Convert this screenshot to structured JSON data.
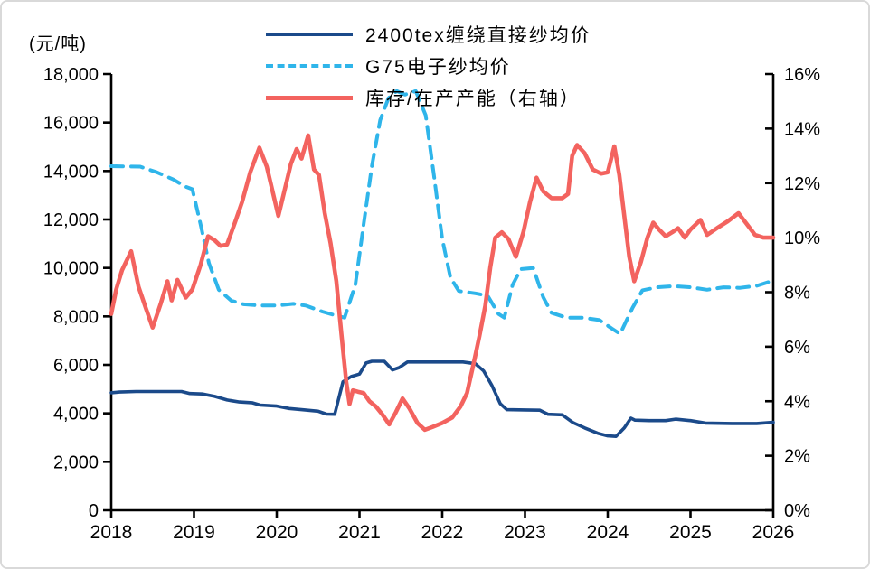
{
  "chart_data": {
    "type": "line",
    "title": "",
    "grid": false,
    "legend_position": "top-center",
    "colors": {
      "navy": "#1b4a8a",
      "sky": "#2fb5ea",
      "red": "#f3635f",
      "axis": "#000000",
      "frame_border": "#d9d9d9"
    },
    "x_axis": {
      "range": [
        2018,
        2026
      ],
      "ticks": [
        {
          "value": 2018,
          "label": "2018"
        },
        {
          "value": 2019,
          "label": "2019"
        },
        {
          "value": 2020,
          "label": "2020"
        },
        {
          "value": 2021,
          "label": "2021"
        },
        {
          "value": 2022,
          "label": "2022"
        },
        {
          "value": 2023,
          "label": "2023"
        },
        {
          "value": 2024,
          "label": "2024"
        },
        {
          "value": 2025,
          "label": "2025"
        },
        {
          "value": 2026,
          "label": "2026"
        }
      ]
    },
    "y_left": {
      "label": "(元/吨)",
      "range": [
        0,
        18000
      ],
      "ticks": [
        {
          "value": 0,
          "label": "0"
        },
        {
          "value": 2000,
          "label": "2,000"
        },
        {
          "value": 4000,
          "label": "4,000"
        },
        {
          "value": 6000,
          "label": "6,000"
        },
        {
          "value": 8000,
          "label": "8,000"
        },
        {
          "value": 10000,
          "label": "10,000"
        },
        {
          "value": 12000,
          "label": "12,000"
        },
        {
          "value": 14000,
          "label": "14,000"
        },
        {
          "value": 16000,
          "label": "16,000"
        },
        {
          "value": 18000,
          "label": "18,000"
        }
      ]
    },
    "y_right": {
      "label": "",
      "range": [
        0,
        16
      ],
      "ticks": [
        {
          "value": 0,
          "label": "0%"
        },
        {
          "value": 2,
          "label": "2%"
        },
        {
          "value": 4,
          "label": "4%"
        },
        {
          "value": 6,
          "label": "6%"
        },
        {
          "value": 8,
          "label": "8%"
        },
        {
          "value": 10,
          "label": "10%"
        },
        {
          "value": 12,
          "label": "12%"
        },
        {
          "value": 14,
          "label": "14%"
        },
        {
          "value": 16,
          "label": "16%"
        }
      ]
    },
    "series": [
      {
        "name": "2400tex缠绕直接纱均价",
        "axis": "left",
        "color": "#1b4a8a",
        "style": "solid",
        "width": 3.6,
        "points": [
          [
            2018.0,
            4850
          ],
          [
            2018.1,
            4880
          ],
          [
            2018.3,
            4900
          ],
          [
            2018.6,
            4900
          ],
          [
            2018.85,
            4900
          ],
          [
            2018.95,
            4820
          ],
          [
            2019.1,
            4800
          ],
          [
            2019.25,
            4700
          ],
          [
            2019.4,
            4550
          ],
          [
            2019.55,
            4470
          ],
          [
            2019.7,
            4440
          ],
          [
            2019.8,
            4340
          ],
          [
            2020.0,
            4300
          ],
          [
            2020.15,
            4200
          ],
          [
            2020.3,
            4150
          ],
          [
            2020.5,
            4090
          ],
          [
            2020.6,
            3970
          ],
          [
            2020.7,
            3960
          ],
          [
            2020.8,
            5300
          ],
          [
            2020.9,
            5520
          ],
          [
            2021.0,
            5620
          ],
          [
            2021.08,
            6080
          ],
          [
            2021.15,
            6150
          ],
          [
            2021.3,
            6150
          ],
          [
            2021.4,
            5790
          ],
          [
            2021.48,
            5890
          ],
          [
            2021.58,
            6120
          ],
          [
            2021.75,
            6120
          ],
          [
            2022.0,
            6120
          ],
          [
            2022.25,
            6120
          ],
          [
            2022.4,
            6050
          ],
          [
            2022.5,
            5750
          ],
          [
            2022.6,
            5150
          ],
          [
            2022.7,
            4400
          ],
          [
            2022.78,
            4150
          ],
          [
            2023.0,
            4140
          ],
          [
            2023.18,
            4130
          ],
          [
            2023.28,
            3960
          ],
          [
            2023.45,
            3940
          ],
          [
            2023.58,
            3620
          ],
          [
            2023.72,
            3400
          ],
          [
            2023.88,
            3180
          ],
          [
            2024.0,
            3070
          ],
          [
            2024.1,
            3050
          ],
          [
            2024.2,
            3400
          ],
          [
            2024.28,
            3800
          ],
          [
            2024.33,
            3720
          ],
          [
            2024.5,
            3700
          ],
          [
            2024.7,
            3700
          ],
          [
            2024.82,
            3760
          ],
          [
            2025.0,
            3700
          ],
          [
            2025.18,
            3600
          ],
          [
            2025.5,
            3580
          ],
          [
            2025.8,
            3580
          ],
          [
            2026.0,
            3630
          ]
        ]
      },
      {
        "name": "G75电子纱均价",
        "axis": "left",
        "color": "#2fb5ea",
        "style": "dashed",
        "width": 4,
        "points": [
          [
            2018.0,
            14200
          ],
          [
            2018.35,
            14180
          ],
          [
            2018.55,
            13950
          ],
          [
            2018.75,
            13650
          ],
          [
            2018.9,
            13350
          ],
          [
            2018.98,
            13250
          ],
          [
            2019.08,
            11800
          ],
          [
            2019.18,
            10200
          ],
          [
            2019.3,
            9100
          ],
          [
            2019.45,
            8650
          ],
          [
            2019.6,
            8500
          ],
          [
            2019.8,
            8450
          ],
          [
            2020.0,
            8450
          ],
          [
            2020.2,
            8520
          ],
          [
            2020.35,
            8450
          ],
          [
            2020.55,
            8200
          ],
          [
            2020.7,
            8050
          ],
          [
            2020.82,
            7950
          ],
          [
            2020.95,
            9300
          ],
          [
            2021.05,
            11800
          ],
          [
            2021.15,
            14200
          ],
          [
            2021.25,
            16100
          ],
          [
            2021.35,
            17000
          ],
          [
            2021.45,
            17300
          ],
          [
            2021.55,
            17150
          ],
          [
            2021.68,
            17300
          ],
          [
            2021.8,
            16300
          ],
          [
            2021.9,
            13800
          ],
          [
            2022.0,
            11200
          ],
          [
            2022.1,
            9600
          ],
          [
            2022.2,
            9050
          ],
          [
            2022.4,
            8950
          ],
          [
            2022.55,
            8850
          ],
          [
            2022.68,
            8100
          ],
          [
            2022.75,
            7950
          ],
          [
            2022.85,
            9300
          ],
          [
            2022.95,
            9950
          ],
          [
            2023.1,
            10000
          ],
          [
            2023.22,
            8800
          ],
          [
            2023.32,
            8150
          ],
          [
            2023.5,
            7950
          ],
          [
            2023.7,
            7950
          ],
          [
            2023.9,
            7850
          ],
          [
            2024.05,
            7500
          ],
          [
            2024.15,
            7280
          ],
          [
            2024.3,
            8350
          ],
          [
            2024.42,
            9080
          ],
          [
            2024.6,
            9200
          ],
          [
            2024.8,
            9250
          ],
          [
            2025.0,
            9200
          ],
          [
            2025.2,
            9100
          ],
          [
            2025.4,
            9200
          ],
          [
            2025.6,
            9180
          ],
          [
            2025.8,
            9260
          ],
          [
            2026.0,
            9480
          ]
        ]
      },
      {
        "name": "库存/在产产能（右轴）",
        "axis": "right",
        "color": "#f3635f",
        "style": "solid",
        "width": 4.6,
        "points": [
          [
            2018.0,
            7.2
          ],
          [
            2018.06,
            8.1
          ],
          [
            2018.13,
            8.8
          ],
          [
            2018.24,
            9.5
          ],
          [
            2018.33,
            8.2
          ],
          [
            2018.42,
            7.4
          ],
          [
            2018.5,
            6.7
          ],
          [
            2018.6,
            7.6
          ],
          [
            2018.68,
            8.4
          ],
          [
            2018.73,
            7.7
          ],
          [
            2018.8,
            8.45
          ],
          [
            2018.9,
            7.8
          ],
          [
            2018.98,
            8.1
          ],
          [
            2019.08,
            9.0
          ],
          [
            2019.17,
            10.05
          ],
          [
            2019.25,
            9.9
          ],
          [
            2019.32,
            9.7
          ],
          [
            2019.4,
            9.75
          ],
          [
            2019.5,
            10.6
          ],
          [
            2019.58,
            11.3
          ],
          [
            2019.68,
            12.4
          ],
          [
            2019.79,
            13.3
          ],
          [
            2019.88,
            12.6
          ],
          [
            2020.02,
            10.8
          ],
          [
            2020.1,
            11.8
          ],
          [
            2020.17,
            12.7
          ],
          [
            2020.24,
            13.25
          ],
          [
            2020.3,
            12.9
          ],
          [
            2020.38,
            13.75
          ],
          [
            2020.45,
            12.5
          ],
          [
            2020.51,
            12.3
          ],
          [
            2020.58,
            10.9
          ],
          [
            2020.65,
            9.8
          ],
          [
            2020.72,
            8.4
          ],
          [
            2020.78,
            6.5
          ],
          [
            2020.84,
            4.7
          ],
          [
            2020.88,
            3.9
          ],
          [
            2020.92,
            4.4
          ],
          [
            2020.98,
            4.35
          ],
          [
            2021.05,
            4.3
          ],
          [
            2021.12,
            4.0
          ],
          [
            2021.2,
            3.8
          ],
          [
            2021.28,
            3.5
          ],
          [
            2021.36,
            3.15
          ],
          [
            2021.44,
            3.6
          ],
          [
            2021.52,
            4.1
          ],
          [
            2021.6,
            3.75
          ],
          [
            2021.7,
            3.2
          ],
          [
            2021.79,
            2.95
          ],
          [
            2021.88,
            3.05
          ],
          [
            2022.0,
            3.2
          ],
          [
            2022.12,
            3.4
          ],
          [
            2022.22,
            3.8
          ],
          [
            2022.3,
            4.3
          ],
          [
            2022.38,
            5.4
          ],
          [
            2022.45,
            6.4
          ],
          [
            2022.52,
            7.5
          ],
          [
            2022.58,
            8.9
          ],
          [
            2022.64,
            10.0
          ],
          [
            2022.72,
            10.2
          ],
          [
            2022.8,
            9.95
          ],
          [
            2022.89,
            9.3
          ],
          [
            2022.98,
            10.2
          ],
          [
            2023.06,
            11.3
          ],
          [
            2023.14,
            12.2
          ],
          [
            2023.22,
            11.7
          ],
          [
            2023.32,
            11.45
          ],
          [
            2023.45,
            11.45
          ],
          [
            2023.52,
            11.6
          ],
          [
            2023.57,
            13.0
          ],
          [
            2023.63,
            13.4
          ],
          [
            2023.72,
            13.1
          ],
          [
            2023.82,
            12.5
          ],
          [
            2023.92,
            12.35
          ],
          [
            2024.0,
            12.4
          ],
          [
            2024.08,
            13.35
          ],
          [
            2024.14,
            12.3
          ],
          [
            2024.2,
            10.8
          ],
          [
            2024.26,
            9.3
          ],
          [
            2024.32,
            8.4
          ],
          [
            2024.4,
            9.1
          ],
          [
            2024.48,
            10.0
          ],
          [
            2024.55,
            10.55
          ],
          [
            2024.62,
            10.3
          ],
          [
            2024.7,
            10.05
          ],
          [
            2024.78,
            10.2
          ],
          [
            2024.85,
            10.35
          ],
          [
            2024.93,
            10.0
          ],
          [
            2025.0,
            10.3
          ],
          [
            2025.12,
            10.65
          ],
          [
            2025.2,
            10.1
          ],
          [
            2025.32,
            10.35
          ],
          [
            2025.45,
            10.6
          ],
          [
            2025.58,
            10.9
          ],
          [
            2025.68,
            10.5
          ],
          [
            2025.78,
            10.1
          ],
          [
            2025.88,
            10.0
          ],
          [
            2026.0,
            10.0
          ]
        ]
      }
    ]
  }
}
